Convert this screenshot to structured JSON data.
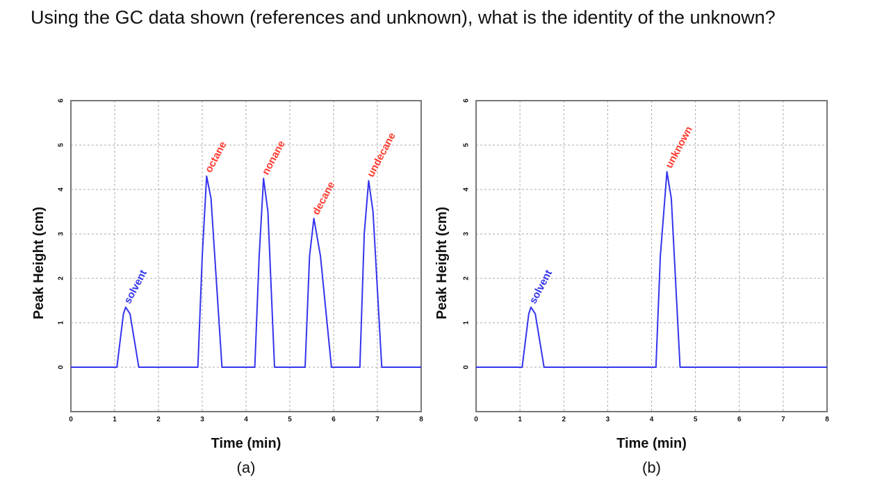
{
  "question": "Using the GC data shown (references and unknown), what is the identity of the unknown?",
  "colors": {
    "trace": "#3333ee",
    "reference_label": "#ff3b30",
    "solvent_label": "#3333ee",
    "grid": "#aaaaaa",
    "frame": "#777777",
    "text": "#111111"
  },
  "chart_data": [
    {
      "type": "line",
      "panel_label": "(a)",
      "xlabel": "Time (min)",
      "ylabel": "Peak Height (cm)",
      "xlim": [
        0,
        8
      ],
      "ylim": [
        -1,
        6
      ],
      "xticks": [
        "0",
        "1",
        "2",
        "3",
        "4",
        "5",
        "6",
        "7",
        "8"
      ],
      "yticks": [
        "0",
        "1",
        "2",
        "3",
        "4",
        "5",
        "6"
      ],
      "grid": true,
      "series": [
        {
          "points": [
            [
              0,
              0
            ],
            [
              1.05,
              0
            ],
            [
              1.2,
              1.2
            ],
            [
              1.25,
              1.35
            ],
            [
              1.35,
              1.2
            ],
            [
              1.55,
              0
            ],
            [
              2.9,
              0
            ],
            [
              3.0,
              2.5
            ],
            [
              3.1,
              4.3
            ],
            [
              3.2,
              3.8
            ],
            [
              3.45,
              0
            ],
            [
              4.2,
              0
            ],
            [
              4.3,
              2.5
            ],
            [
              4.4,
              4.25
            ],
            [
              4.5,
              3.5
            ],
            [
              4.65,
              0
            ],
            [
              5.35,
              0
            ],
            [
              5.45,
              2.5
            ],
            [
              5.55,
              3.35
            ],
            [
              5.7,
              2.5
            ],
            [
              5.95,
              0
            ],
            [
              6.6,
              0
            ],
            [
              6.7,
              3.0
            ],
            [
              6.8,
              4.2
            ],
            [
              6.9,
              3.5
            ],
            [
              7.1,
              0
            ],
            [
              8,
              0
            ]
          ]
        }
      ],
      "annotations": [
        {
          "text": "solvent",
          "x": 1.25,
          "y": 1.35,
          "kind": "solvent"
        },
        {
          "text": "octane",
          "x": 3.1,
          "y": 4.3,
          "kind": "reference"
        },
        {
          "text": "nonane",
          "x": 4.4,
          "y": 4.25,
          "kind": "reference"
        },
        {
          "text": "decane",
          "x": 5.55,
          "y": 3.35,
          "kind": "reference"
        },
        {
          "text": "undecane",
          "x": 6.8,
          "y": 4.2,
          "kind": "reference"
        }
      ]
    },
    {
      "type": "line",
      "panel_label": "(b)",
      "xlabel": "Time (min)",
      "ylabel": "Peak Height (cm)",
      "xlim": [
        0,
        8
      ],
      "ylim": [
        -1,
        6
      ],
      "xticks": [
        "0",
        "1",
        "2",
        "3",
        "4",
        "5",
        "6",
        "7",
        "8"
      ],
      "yticks": [
        "0",
        "1",
        "2",
        "3",
        "4",
        "5",
        "6"
      ],
      "grid": true,
      "series": [
        {
          "points": [
            [
              0,
              0
            ],
            [
              1.05,
              0
            ],
            [
              1.2,
              1.2
            ],
            [
              1.25,
              1.35
            ],
            [
              1.35,
              1.2
            ],
            [
              1.55,
              0
            ],
            [
              4.1,
              0
            ],
            [
              4.2,
              2.5
            ],
            [
              4.35,
              4.4
            ],
            [
              4.45,
              3.8
            ],
            [
              4.65,
              0
            ],
            [
              8,
              0
            ]
          ]
        }
      ],
      "annotations": [
        {
          "text": "solvent",
          "x": 1.25,
          "y": 1.35,
          "kind": "solvent"
        },
        {
          "text": "unknown",
          "x": 4.35,
          "y": 4.4,
          "kind": "reference"
        }
      ]
    }
  ]
}
